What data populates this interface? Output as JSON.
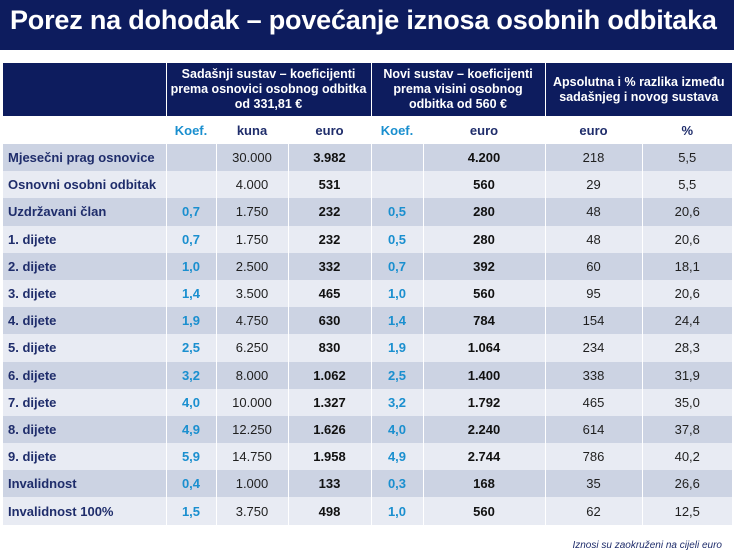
{
  "title": "Porez na dohodak – povećanje iznosa osobnih odbitaka",
  "header": {
    "group_current": "Sadašnji sustav – koeficijenti prema osnovici osobnog odbitka od 331,81 €",
    "group_new": "Novi sustav – koeficijenti prema visini osobnog odbitka od 560 €",
    "group_diff": "Apsolutna i % razlika između sadašnjeg i novog sustava",
    "col_koef_current": "Koef.",
    "col_kuna": "kuna",
    "col_euro_current": "euro",
    "col_koef_new": "Koef.",
    "col_euro_new": "euro",
    "col_diff_euro": "euro",
    "col_diff_pct": "%"
  },
  "rows": [
    {
      "label": "Mjesečni prag osnovice",
      "koef": "",
      "kuna": "30.000",
      "euro": "3.982",
      "koef_new": "",
      "euro_new": "4.200",
      "diff": "218",
      "pct": "5,5"
    },
    {
      "label": "Osnovni osobni odbitak",
      "koef": "",
      "kuna": "4.000",
      "euro": "531",
      "koef_new": "",
      "euro_new": "560",
      "diff": "29",
      "pct": "5,5"
    },
    {
      "label": "Uzdržavani član",
      "koef": "0,7",
      "kuna": "1.750",
      "euro": "232",
      "koef_new": "0,5",
      "euro_new": "280",
      "diff": "48",
      "pct": "20,6"
    },
    {
      "label": "1. dijete",
      "koef": "0,7",
      "kuna": "1.750",
      "euro": "232",
      "koef_new": "0,5",
      "euro_new": "280",
      "diff": "48",
      "pct": "20,6"
    },
    {
      "label": "2. dijete",
      "koef": "1,0",
      "kuna": "2.500",
      "euro": "332",
      "koef_new": "0,7",
      "euro_new": "392",
      "diff": "60",
      "pct": "18,1"
    },
    {
      "label": "3. dijete",
      "koef": "1,4",
      "kuna": "3.500",
      "euro": "465",
      "koef_new": "1,0",
      "euro_new": "560",
      "diff": "95",
      "pct": "20,6"
    },
    {
      "label": "4. dijete",
      "koef": "1,9",
      "kuna": "4.750",
      "euro": "630",
      "koef_new": "1,4",
      "euro_new": "784",
      "diff": "154",
      "pct": "24,4"
    },
    {
      "label": "5. dijete",
      "koef": "2,5",
      "kuna": "6.250",
      "euro": "830",
      "koef_new": "1,9",
      "euro_new": "1.064",
      "diff": "234",
      "pct": "28,3"
    },
    {
      "label": "6. dijete",
      "koef": "3,2",
      "kuna": "8.000",
      "euro": "1.062",
      "koef_new": "2,5",
      "euro_new": "1.400",
      "diff": "338",
      "pct": "31,9"
    },
    {
      "label": "7. dijete",
      "koef": "4,0",
      "kuna": "10.000",
      "euro": "1.327",
      "koef_new": "3,2",
      "euro_new": "1.792",
      "diff": "465",
      "pct": "35,0"
    },
    {
      "label": "8. dijete",
      "koef": "4,9",
      "kuna": "12.250",
      "euro": "1.626",
      "koef_new": "4,0",
      "euro_new": "2.240",
      "diff": "614",
      "pct": "37,8"
    },
    {
      "label": "9. dijete",
      "koef": "5,9",
      "kuna": "14.750",
      "euro": "1.958",
      "koef_new": "4,9",
      "euro_new": "2.744",
      "diff": "786",
      "pct": "40,2"
    },
    {
      "label": "Invalidnost",
      "koef": "0,4",
      "kuna": "1.000",
      "euro": "133",
      "koef_new": "0,3",
      "euro_new": "168",
      "diff": "35",
      "pct": "26,6"
    },
    {
      "label": "Invalidnost 100%",
      "koef": "1,5",
      "kuna": "3.750",
      "euro": "498",
      "koef_new": "1,0",
      "euro_new": "560",
      "diff": "62",
      "pct": "12,5"
    }
  ],
  "footnote": "Iznosi su zaokruženi na cijeli euro",
  "colors": {
    "title_bg": "#0d1c5e",
    "koef_text": "#1a8fcf",
    "row_dark": "#ccd3e3",
    "row_light": "#e8ebf3"
  }
}
